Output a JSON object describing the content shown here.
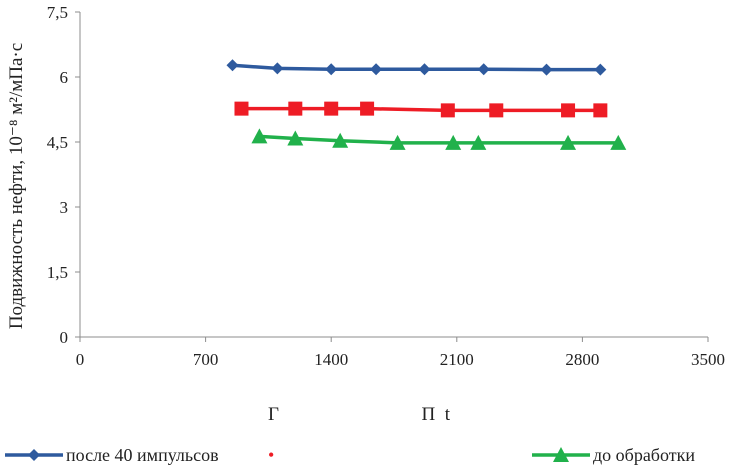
{
  "chart_data": {
    "type": "line",
    "ylabel": "Подвижность нефти, 10⁻⁸ м²/мПа·с",
    "xlabel": "Г                              П  t",
    "xlim": [
      0,
      3500
    ],
    "ylim": [
      0,
      7.5
    ],
    "x_ticks": [
      "0",
      "700",
      "1400",
      "2100",
      "2800",
      "3500"
    ],
    "y_ticks": [
      "0",
      "1,5",
      "3",
      "4,5",
      "6",
      "7,5"
    ],
    "grid": false,
    "legend_position": "bottom",
    "series": [
      {
        "name": "после 40 импульсов",
        "color": "#2e5a9e",
        "marker": "diamond",
        "x": [
          850,
          1100,
          1400,
          1650,
          1920,
          2250,
          2600,
          2900
        ],
        "y": [
          6.27,
          6.2,
          6.18,
          6.18,
          6.18,
          6.18,
          6.17,
          6.17
        ]
      },
      {
        "name": "",
        "legend_label": "•",
        "color": "#ee1c25",
        "marker": "square",
        "x": [
          900,
          1200,
          1400,
          1600,
          2050,
          2320,
          2720,
          2900
        ],
        "y": [
          5.27,
          5.27,
          5.27,
          5.27,
          5.23,
          5.23,
          5.23,
          5.23
        ]
      },
      {
        "name": "до обработки",
        "color": "#21b14b",
        "marker": "triangle",
        "x": [
          1000,
          1200,
          1450,
          1770,
          2080,
          2220,
          2720,
          3000
        ],
        "y": [
          4.63,
          4.58,
          4.53,
          4.48,
          4.48,
          4.48,
          4.48,
          4.48
        ]
      }
    ]
  }
}
